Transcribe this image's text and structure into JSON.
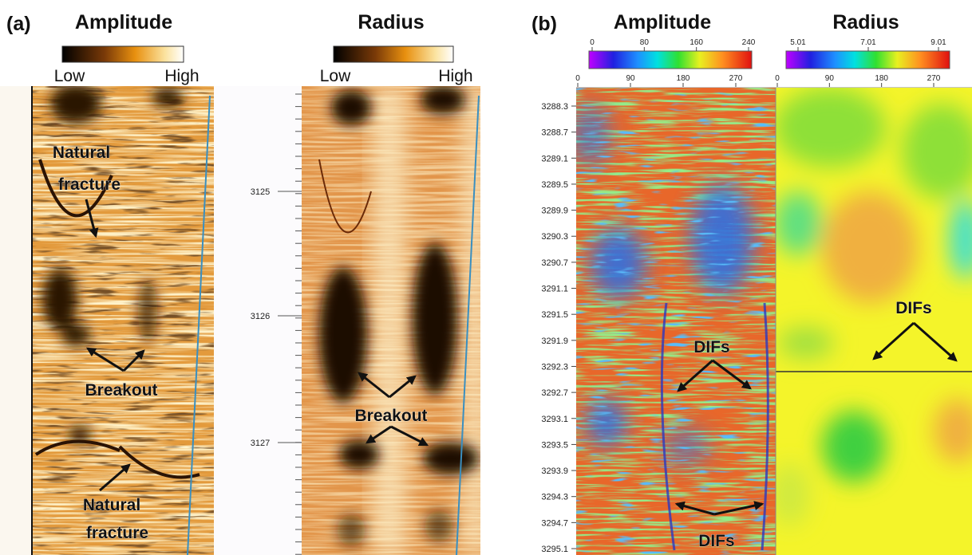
{
  "panel_a": {
    "label": "(a)",
    "amplitude": {
      "title": "Amplitude",
      "low": "Low",
      "high": "High"
    },
    "radius": {
      "title": "Radius",
      "low": "Low",
      "high": "High"
    },
    "depths": [
      "3125",
      "3126",
      "3127"
    ],
    "annotations": {
      "natural_fracture_top": [
        "Natural",
        "fracture"
      ],
      "breakout_amplitude": "Breakout",
      "natural_fracture_bottom": [
        "Natural",
        "fracture"
      ],
      "breakout_radius": "Breakout"
    }
  },
  "panel_b": {
    "label": "(b)",
    "amplitude": {
      "title": "Amplitude",
      "scale": [
        "0",
        "80",
        "160",
        "240"
      ],
      "azimuth": [
        "0",
        "90",
        "180",
        "270"
      ]
    },
    "radius": {
      "title": "Radius",
      "scale": [
        "5.01",
        "7.01",
        "9.01"
      ],
      "azimuth": [
        "0",
        "90",
        "180",
        "270"
      ]
    },
    "depths": [
      "3288.3",
      "3288.7",
      "3289.1",
      "3289.5",
      "3289.9",
      "3290.3",
      "3290.7",
      "3291.1",
      "3291.5",
      "3291.9",
      "3292.3",
      "3292.7",
      "3293.1",
      "3293.5",
      "3293.9",
      "3294.3",
      "3294.7",
      "3295.1"
    ],
    "annotations": {
      "difs_amplitude_upper": "DIFs",
      "difs_amplitude_lower": "DIFs",
      "difs_radius": "DIFs"
    }
  }
}
